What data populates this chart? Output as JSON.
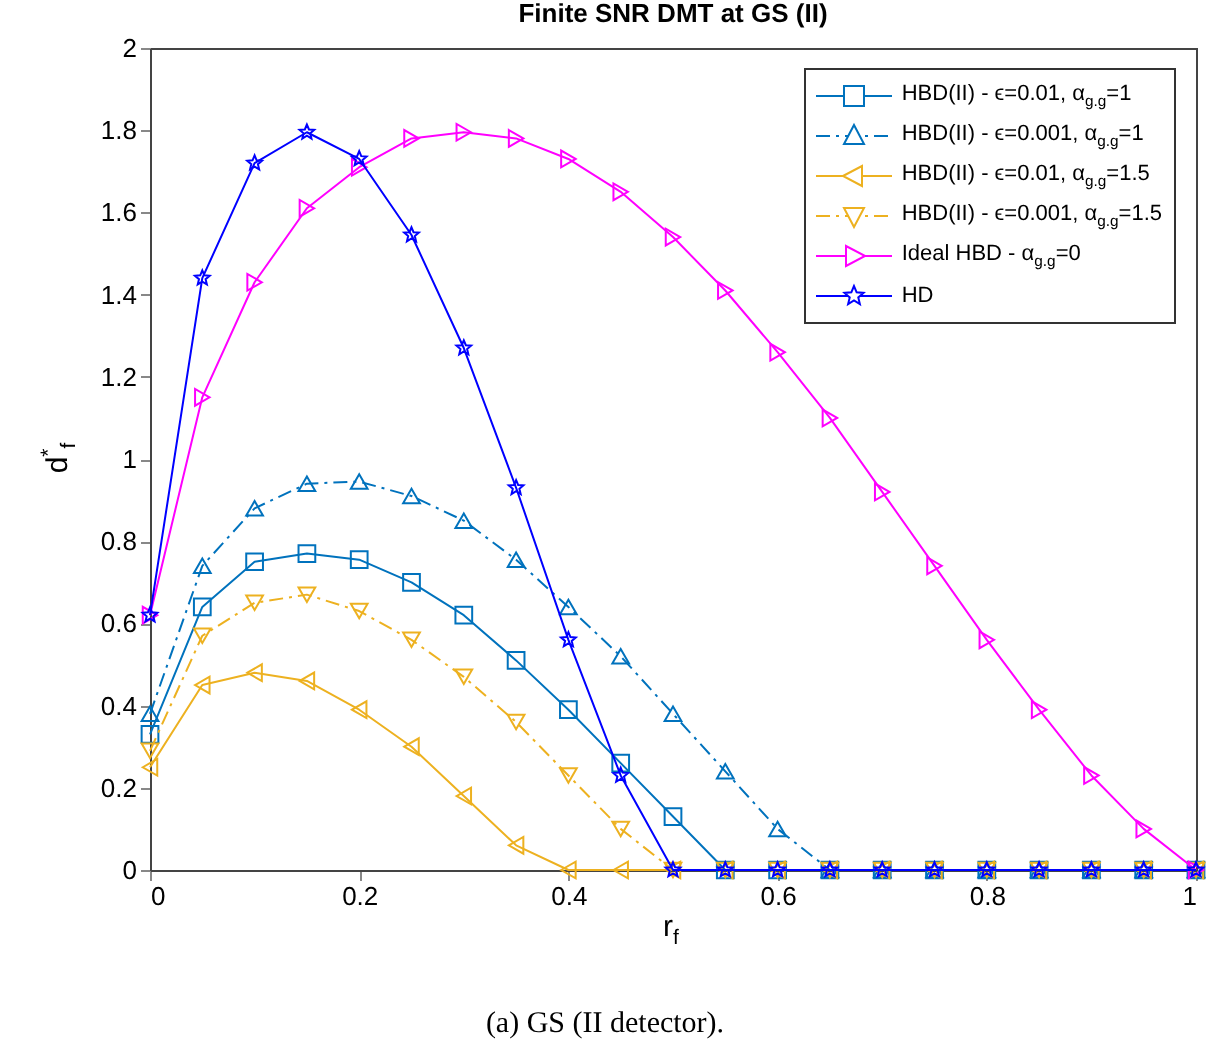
{
  "chart_data": {
    "type": "line",
    "title": "Finite SNR DMT at GS (II)",
    "xlabel": "r$_{f}$",
    "ylabel": "d$^{*}$$_{f}$",
    "annotations": [
      "(a) GS (II detector)."
    ],
    "x": [
      0,
      0.05,
      0.1,
      0.15,
      0.2,
      0.25,
      0.3,
      0.35,
      0.4,
      0.45,
      0.5,
      0.55,
      0.6,
      0.65,
      0.7,
      0.75,
      0.8,
      0.85,
      0.9,
      0.95,
      1
    ],
    "xlim": [
      0,
      1
    ],
    "xticks": [
      0,
      0.2,
      0.4,
      0.6,
      0.8,
      1
    ],
    "ylim": [
      0,
      2
    ],
    "yticks": [
      0,
      0.2,
      0.4,
      0.6,
      0.8,
      1,
      1.2,
      1.4,
      1.6,
      1.8,
      2
    ],
    "grid": false,
    "legend": "top right",
    "series": [
      {
        "name": "HBD(II) - ϵ=0.01, α$_{g.g}$=1",
        "color": "#0072bd",
        "marker": "square",
        "line_style": "solid",
        "values": [
          0.33,
          0.64,
          0.75,
          0.77,
          0.755,
          0.7,
          0.62,
          0.51,
          0.39,
          0.26,
          0.13,
          0,
          0,
          0,
          0,
          0,
          0,
          0,
          0,
          0,
          0
        ]
      },
      {
        "name": "HBD(II) - ϵ=0.001, α$_{g.g}$=1",
        "color": "#0072bd",
        "marker": "triangle",
        "line_style": "dashed",
        "values": [
          0.38,
          0.74,
          0.88,
          0.94,
          0.945,
          0.91,
          0.85,
          0.755,
          0.64,
          0.52,
          0.38,
          0.24,
          0.1,
          0,
          0,
          0,
          0,
          0,
          0,
          0,
          0
        ]
      },
      {
        "name": "HBD(II) - ϵ=0.01, α$_{g.g}$=1.5",
        "color": "#edb120",
        "marker": "triangle-left",
        "line_style": "solid",
        "values": [
          0.25,
          0.45,
          0.48,
          0.46,
          0.39,
          0.3,
          0.18,
          0.06,
          0,
          0,
          0,
          0,
          0,
          0,
          0,
          0,
          0,
          0,
          0,
          0,
          0
        ]
      },
      {
        "name": "HBD(II) - ϵ=0.001, α$_{g.g}$=1.5",
        "color": "#edb120",
        "marker": "triangle-down",
        "line_style": "dashed",
        "values": [
          0.29,
          0.57,
          0.65,
          0.67,
          0.63,
          0.56,
          0.47,
          0.36,
          0.23,
          0.1,
          0,
          0,
          0,
          0,
          0,
          0,
          0,
          0,
          0,
          0,
          0
        ]
      },
      {
        "name": "Ideal HBD - α$_{g.g}$=0",
        "color": "#ff00ff",
        "marker": "triangle-right",
        "line_style": "solid",
        "values": [
          0.62,
          1.15,
          1.43,
          1.61,
          1.71,
          1.78,
          1.795,
          1.78,
          1.73,
          1.65,
          1.54,
          1.41,
          1.26,
          1.1,
          0.92,
          0.74,
          0.56,
          0.39,
          0.23,
          0.1,
          0
        ]
      },
      {
        "name": "HD",
        "color": "#0000ff",
        "marker": "star",
        "line_style": "solid",
        "values": [
          0.62,
          1.44,
          1.72,
          1.795,
          1.73,
          1.545,
          1.27,
          0.93,
          0.56,
          0.23,
          0,
          0,
          0,
          0,
          0,
          0,
          0,
          0,
          0,
          0,
          0
        ]
      }
    ]
  }
}
